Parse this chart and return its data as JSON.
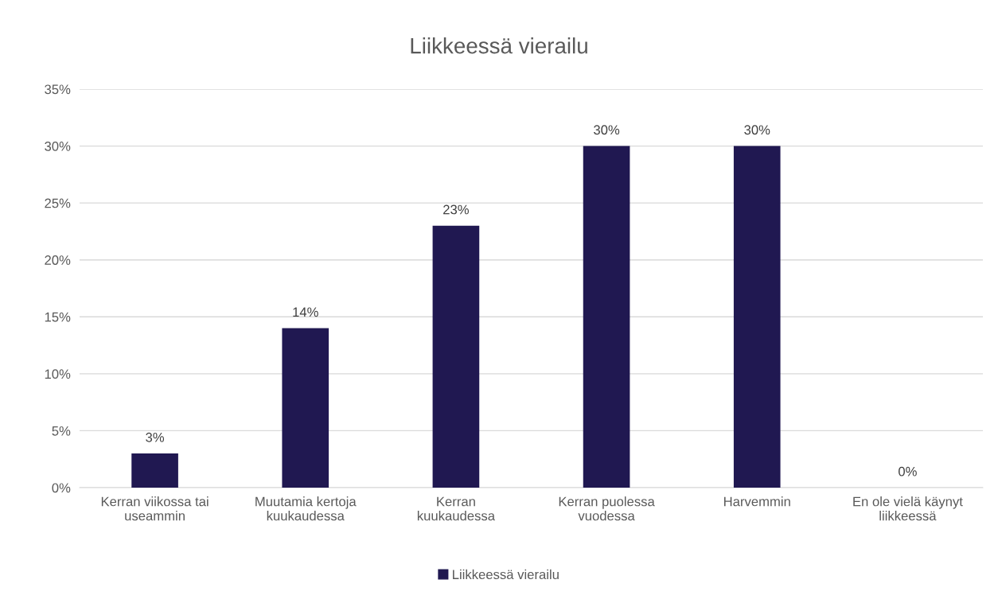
{
  "chart_data": {
    "type": "bar",
    "title": "Liikkeessä vierailu",
    "categories": [
      "Kerran viikossa tai\nuseammin",
      "Muutamia kertoja\nkuukaudessa",
      "Kerran\nkuukaudessa",
      "Kerran puolessa\nvuodessa",
      "Harvemmin",
      "En ole vielä käynyt\nliikkeessä"
    ],
    "series": [
      {
        "name": "Liikkeessä vierailu",
        "color": "#201851",
        "values": [
          3,
          14,
          23,
          30,
          30,
          0
        ],
        "value_labels": [
          "3%",
          "14%",
          "23%",
          "30%",
          "30%",
          "0%"
        ]
      }
    ],
    "ylim": [
      0,
      35
    ],
    "yticks": [
      {
        "value": 0,
        "label": "0%"
      },
      {
        "value": 5,
        "label": "5%"
      },
      {
        "value": 10,
        "label": "10%"
      },
      {
        "value": 15,
        "label": "15%"
      },
      {
        "value": 20,
        "label": "20%"
      },
      {
        "value": 25,
        "label": "25%"
      },
      {
        "value": 30,
        "label": "30%"
      },
      {
        "value": 35,
        "label": "35%"
      }
    ],
    "grid": "y",
    "legend": "bottom"
  }
}
